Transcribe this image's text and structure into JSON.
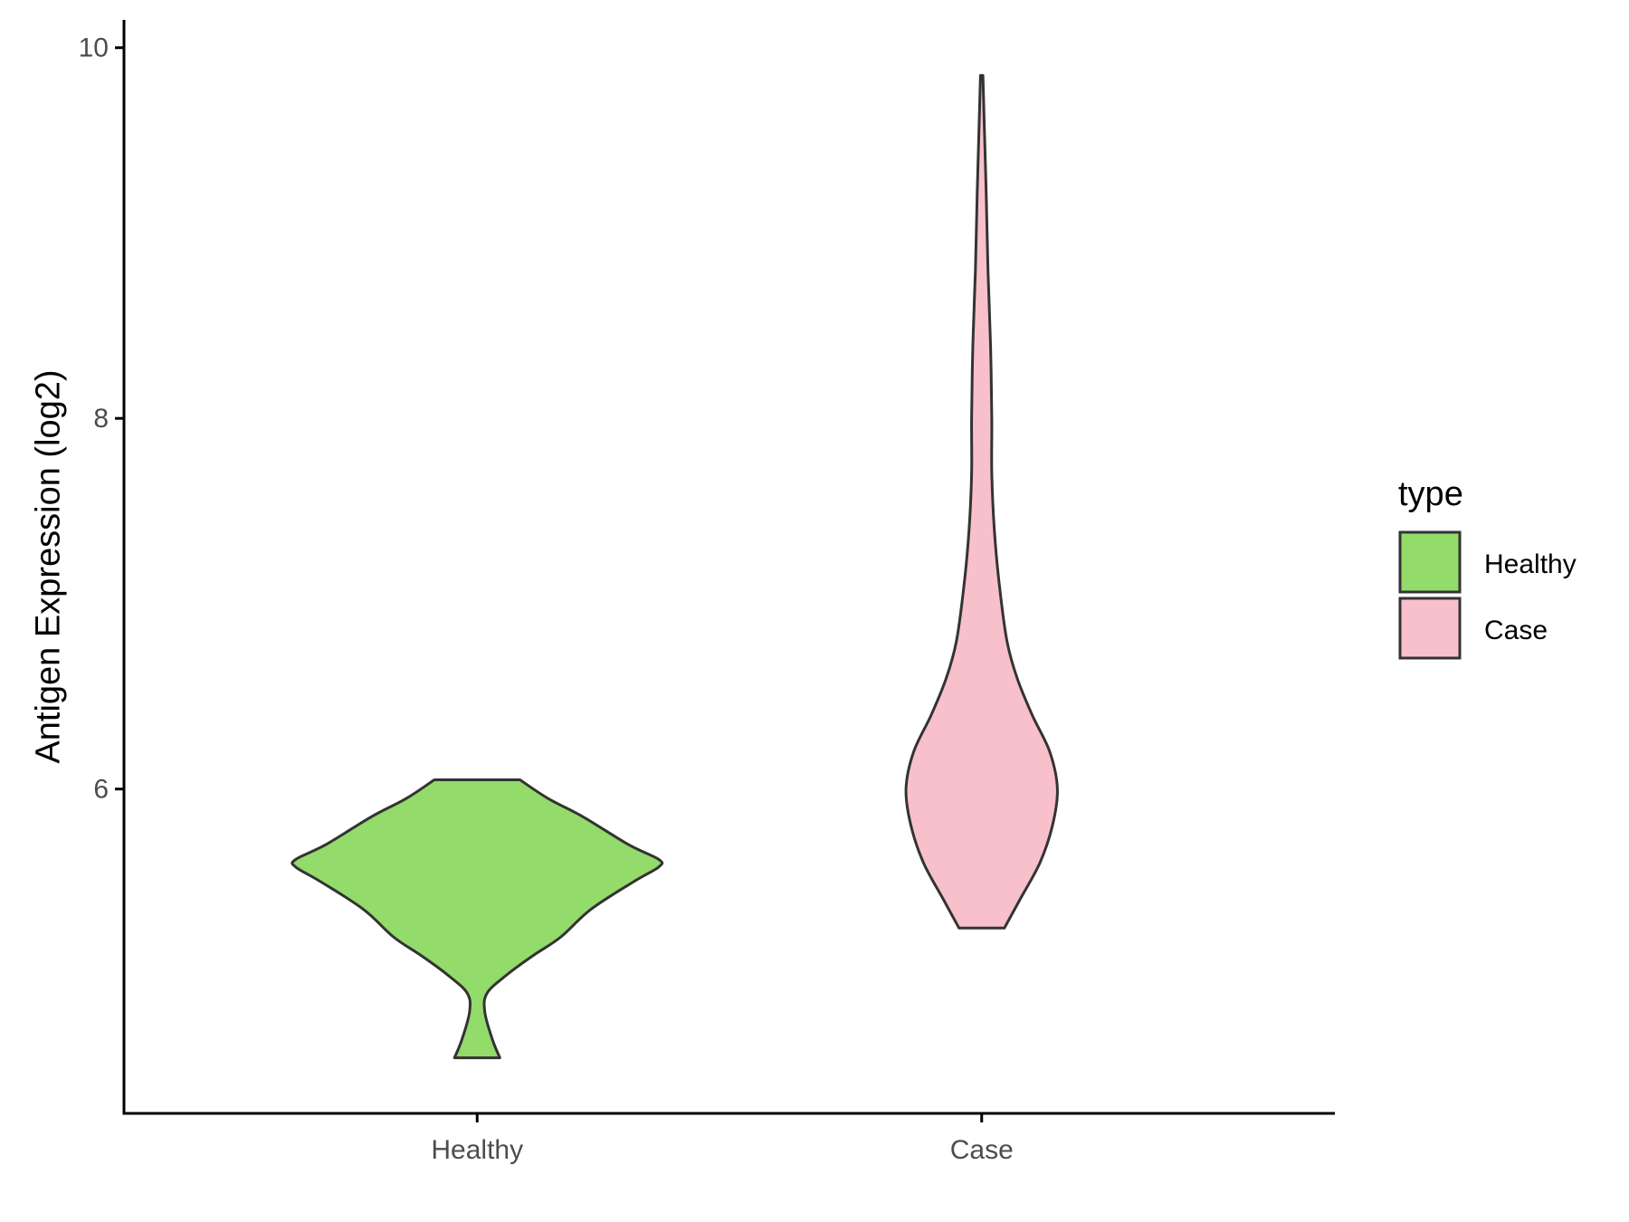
{
  "chart_data": {
    "type": "violin",
    "title": "",
    "xlabel": "",
    "ylabel": "Antigen Expression (log2)",
    "categories": [
      "Healthy",
      "Case"
    ],
    "y_ticks": [
      6,
      8,
      10
    ],
    "ylim": [
      4.25,
      10.15
    ],
    "grid": false,
    "legend": {
      "title": "type",
      "position": "right",
      "entries": [
        {
          "label": "Healthy",
          "color": "#93DB6A"
        },
        {
          "label": "Case",
          "color": "#F8C0CB"
        }
      ]
    },
    "series": [
      {
        "category": "Healthy",
        "color": "#93DB6A",
        "y_min": 4.55,
        "y_max": 6.05,
        "density_profile": [
          {
            "y": 4.55,
            "half_width": 0.09
          },
          {
            "y": 4.65,
            "half_width": 0.06
          },
          {
            "y": 4.8,
            "half_width": 0.03
          },
          {
            "y": 4.9,
            "half_width": 0.04
          },
          {
            "y": 5.0,
            "half_width": 0.12
          },
          {
            "y": 5.1,
            "half_width": 0.22
          },
          {
            "y": 5.2,
            "half_width": 0.33
          },
          {
            "y": 5.35,
            "half_width": 0.45
          },
          {
            "y": 5.5,
            "half_width": 0.62
          },
          {
            "y": 5.58,
            "half_width": 0.72
          },
          {
            "y": 5.62,
            "half_width": 0.72
          },
          {
            "y": 5.7,
            "half_width": 0.6
          },
          {
            "y": 5.85,
            "half_width": 0.42
          },
          {
            "y": 5.95,
            "half_width": 0.28
          },
          {
            "y": 6.05,
            "half_width": 0.17
          }
        ]
      },
      {
        "category": "Case",
        "color": "#F8C0CB",
        "y_min": 5.25,
        "y_max": 9.85,
        "density_profile": [
          {
            "y": 5.25,
            "half_width": 0.09
          },
          {
            "y": 5.4,
            "half_width": 0.15
          },
          {
            "y": 5.6,
            "half_width": 0.23
          },
          {
            "y": 5.8,
            "half_width": 0.28
          },
          {
            "y": 6.0,
            "half_width": 0.3
          },
          {
            "y": 6.2,
            "half_width": 0.27
          },
          {
            "y": 6.4,
            "half_width": 0.2
          },
          {
            "y": 6.6,
            "half_width": 0.14
          },
          {
            "y": 6.8,
            "half_width": 0.1
          },
          {
            "y": 7.1,
            "half_width": 0.07
          },
          {
            "y": 7.4,
            "half_width": 0.05
          },
          {
            "y": 7.7,
            "half_width": 0.04
          },
          {
            "y": 8.0,
            "half_width": 0.04
          },
          {
            "y": 8.4,
            "half_width": 0.035
          },
          {
            "y": 8.8,
            "half_width": 0.025
          },
          {
            "y": 9.2,
            "half_width": 0.018
          },
          {
            "y": 9.6,
            "half_width": 0.01
          },
          {
            "y": 9.85,
            "half_width": 0.005
          }
        ]
      }
    ]
  }
}
